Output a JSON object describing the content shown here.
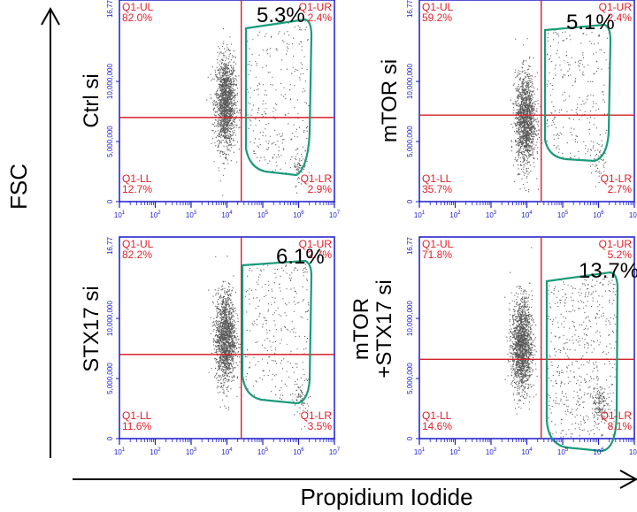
{
  "colors": {
    "axis_frame": "#1a1acc",
    "quadrant_lines": "#d4202a",
    "quadrant_labels": "#e0202a",
    "gate": "#1a9b7a",
    "events": "#222222"
  },
  "axis_labels": {
    "y": "FSC",
    "x": "Propidium Iodide"
  },
  "chart_data": [
    {
      "type": "scatter",
      "row_label": "Ctrl si",
      "gate_percent": "5.3%",
      "quadrants": {
        "UL_name": "Q1-UL",
        "UL": "82.0%",
        "UR_name": "Q1-UR",
        "UR": "2.4%",
        "LL_name": "Q1-LL",
        "LL": "12.7%",
        "LR_name": "Q1-LR",
        "LR": "2.9%"
      },
      "y_top_label": "16,77",
      "y_ticks": [
        "10,000,000",
        "5,000,000",
        "0"
      ],
      "x_ticks": [
        "10^1",
        "10^2",
        "10^3",
        "10^4",
        "10^5",
        "10^6",
        "10^7"
      ],
      "x_threshold_log": 4.4,
      "y_threshold": 7000000,
      "xlim_log": [
        1,
        7
      ],
      "ylim": [
        0,
        16777215
      ],
      "cluster": {
        "x_log": 3.95,
        "y": 8200000,
        "n": 1600
      },
      "gate_events": 260,
      "gate_blob": {
        "x_log": 6.0,
        "y": 3200000,
        "n": 60
      }
    },
    {
      "type": "scatter",
      "row_label": "mTOR si",
      "gate_percent": "5.1%",
      "quadrants": {
        "UL_name": "Q1-UL",
        "UL": "59.2%",
        "UR_name": "Q1-UR",
        "UR": "2.4%",
        "LL_name": "Q1-LL",
        "LL": "35.7%",
        "LR_name": "Q1-LR",
        "LR": "2.7%"
      },
      "y_top_label": "16,77",
      "y_ticks": [
        "10,000,000",
        "5,000,000",
        "0"
      ],
      "x_ticks": [
        "10^1",
        "10^2",
        "10^3",
        "10^4",
        "10^5",
        "10^6",
        "10^7"
      ],
      "x_threshold_log": 4.4,
      "y_threshold": 7200000,
      "xlim_log": [
        1,
        7
      ],
      "ylim": [
        0,
        16777215
      ],
      "cluster": {
        "x_log": 3.95,
        "y": 6800000,
        "n": 1500
      },
      "gate_events": 250,
      "gate_blob": {
        "x_log": 6.0,
        "y": 3600000,
        "n": 50
      }
    },
    {
      "type": "scatter",
      "row_label": "STX17 si",
      "gate_percent": "6.1%",
      "quadrants": {
        "UL_name": "Q1-UL",
        "UL": "82.2%",
        "UR_name": "Q1-UR",
        "UR": "2.7%",
        "LL_name": "Q1-LL",
        "LL": "11.6%",
        "LR_name": "Q1-LR",
        "LR": "3.5%"
      },
      "y_top_label": "16,77",
      "y_ticks": [
        "10,000,000",
        "5,000,000",
        "0"
      ],
      "x_ticks": [
        "10^1",
        "10^2",
        "10^3",
        "10^4",
        "10^5",
        "10^6",
        "10^7"
      ],
      "x_threshold_log": 4.4,
      "y_threshold": 7000000,
      "xlim_log": [
        1,
        7
      ],
      "ylim": [
        0,
        16777215
      ],
      "cluster": {
        "x_log": 3.95,
        "y": 8400000,
        "n": 1600
      },
      "gate_events": 280,
      "gate_blob": {
        "x_log": 6.1,
        "y": 3300000,
        "n": 60
      }
    },
    {
      "type": "scatter",
      "row_label": "mTOR\n+STX17 si",
      "gate_percent": "13.7%",
      "quadrants": {
        "UL_name": "Q1-UL",
        "UL": "71.8%",
        "UR_name": "Q1-UR",
        "UR": "5.2%",
        "LL_name": "Q1-LL",
        "LL": "14.6%",
        "LR_name": "Q1-LR",
        "LR": "8.1%"
      },
      "y_top_label": "16,77",
      "y_ticks": [
        "10,000,000",
        "5,000,000",
        "0"
      ],
      "x_ticks": [
        "10^1",
        "10^2",
        "10^3",
        "10^4",
        "10^5",
        "10^6",
        "10^7"
      ],
      "x_threshold_log": 4.4,
      "y_threshold": 6600000,
      "xlim_log": [
        1,
        7
      ],
      "ylim": [
        0,
        16777215
      ],
      "cluster": {
        "x_log": 3.85,
        "y": 7800000,
        "n": 1700
      },
      "gate_events": 520,
      "gate_blob": {
        "x_log": 6.0,
        "y": 3000000,
        "n": 140
      }
    }
  ]
}
